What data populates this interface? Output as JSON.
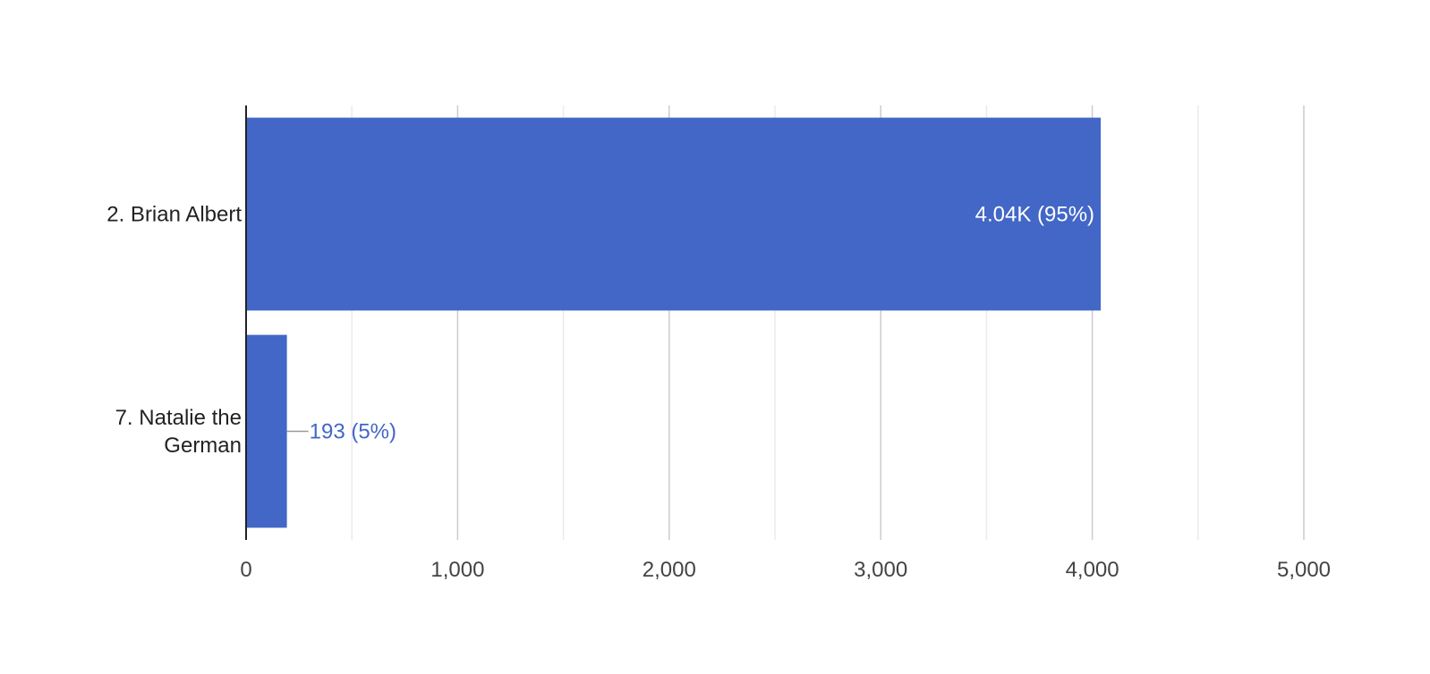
{
  "chart_data": {
    "type": "bar",
    "orientation": "horizontal",
    "categories": [
      [
        "2. Brian Albert"
      ],
      [
        "7. Natalie the",
        "German"
      ]
    ],
    "values": [
      4040,
      193
    ],
    "data_labels": [
      "4.04K (95%)",
      "193 (5%)"
    ],
    "xlim": [
      0,
      5000
    ],
    "x_ticks": [
      0,
      1000,
      2000,
      3000,
      4000,
      5000
    ],
    "x_tick_labels": [
      "0",
      "1,000",
      "2,000",
      "3,000",
      "4,000",
      "5,000"
    ],
    "grid": true,
    "minor_grid": true,
    "legend": "none",
    "colors": {
      "bar": "#4267C6",
      "label_inside": "#ffffff",
      "label_outside": "#4267C6",
      "grid_major": "#cccccc",
      "grid_minor": "#ebebeb",
      "axis": "#222222",
      "leader": "#999999"
    }
  }
}
